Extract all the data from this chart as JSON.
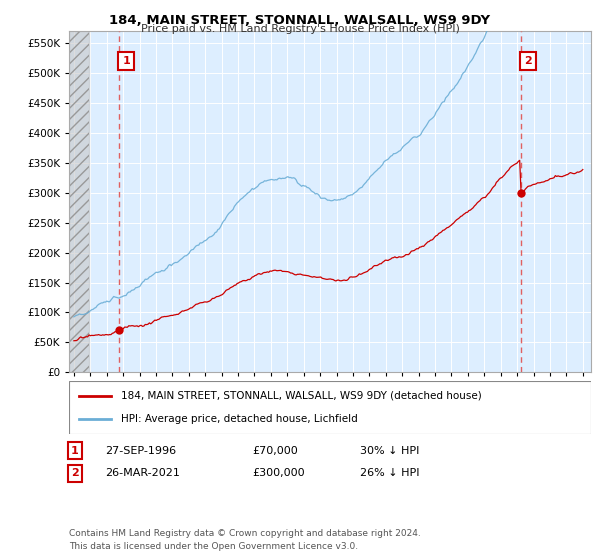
{
  "title": "184, MAIN STREET, STONNALL, WALSALL, WS9 9DY",
  "subtitle": "Price paid vs. HM Land Registry's House Price Index (HPI)",
  "legend_line1": "184, MAIN STREET, STONNALL, WALSALL, WS9 9DY (detached house)",
  "legend_line2": "HPI: Average price, detached house, Lichfield",
  "sale1_label": "1",
  "sale1_date": "27-SEP-1996",
  "sale1_price": "£70,000",
  "sale1_hpi": "30% ↓ HPI",
  "sale1_year": 1996.75,
  "sale1_value": 70000,
  "sale2_label": "2",
  "sale2_date": "26-MAR-2021",
  "sale2_price": "£300,000",
  "sale2_hpi": "26% ↓ HPI",
  "sale2_year": 2021.22,
  "sale2_value": 300000,
  "price_color": "#cc0000",
  "hpi_color": "#6baed6",
  "plot_bg_color": "#ddeeff",
  "annotation_box_color": "#cc0000",
  "dashed_line_color": "#e06060",
  "ylim_max": 570000,
  "xlim_start": 1993.7,
  "xlim_end": 2025.5,
  "footer": "Contains HM Land Registry data © Crown copyright and database right 2024.\nThis data is licensed under the Open Government Licence v3.0."
}
